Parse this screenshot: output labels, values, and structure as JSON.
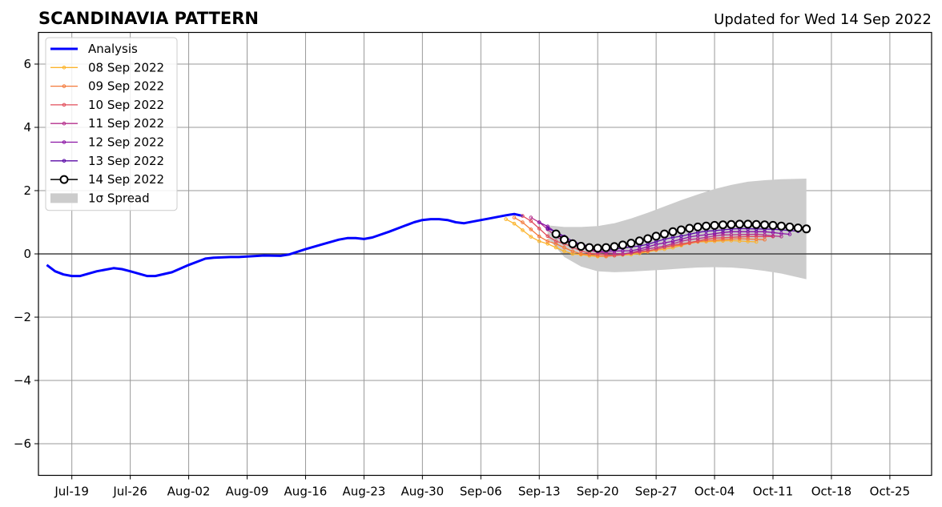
{
  "chart_data": {
    "type": "line",
    "title": "SCANDINAVIA PATTERN",
    "subtitle": "Updated for Wed 14 Sep 2022",
    "xlabel": "",
    "ylabel": "",
    "xlim": [
      "2022-07-15",
      "2022-10-30"
    ],
    "ylim": [
      -7,
      7
    ],
    "x_ticks": [
      {
        "date": "2022-07-19",
        "label": "Jul-19"
      },
      {
        "date": "2022-07-26",
        "label": "Jul-26"
      },
      {
        "date": "2022-08-02",
        "label": "Aug-02"
      },
      {
        "date": "2022-08-09",
        "label": "Aug-09"
      },
      {
        "date": "2022-08-16",
        "label": "Aug-16"
      },
      {
        "date": "2022-08-23",
        "label": "Aug-23"
      },
      {
        "date": "2022-08-30",
        "label": "Aug-30"
      },
      {
        "date": "2022-09-06",
        "label": "Sep-06"
      },
      {
        "date": "2022-09-13",
        "label": "Sep-13"
      },
      {
        "date": "2022-09-20",
        "label": "Sep-20"
      },
      {
        "date": "2022-09-27",
        "label": "Sep-27"
      },
      {
        "date": "2022-10-04",
        "label": "Oct-04"
      },
      {
        "date": "2022-10-11",
        "label": "Oct-11"
      },
      {
        "date": "2022-10-18",
        "label": "Oct-18"
      },
      {
        "date": "2022-10-25",
        "label": "Oct-25"
      }
    ],
    "y_ticks": [
      {
        "value": -6,
        "label": "−6"
      },
      {
        "value": -4,
        "label": "−4"
      },
      {
        "value": -2,
        "label": "−2"
      },
      {
        "value": 0,
        "label": "0"
      },
      {
        "value": 2,
        "label": "2"
      },
      {
        "value": 4,
        "label": "4"
      },
      {
        "value": 6,
        "label": "6"
      }
    ],
    "grid": true,
    "legend_position": "top-left",
    "zero_line": 0,
    "analysis": {
      "name": "Analysis",
      "color": "#0000ff",
      "dates": [
        "2022-07-16",
        "2022-07-17",
        "2022-07-18",
        "2022-07-19",
        "2022-07-20",
        "2022-07-22",
        "2022-07-24",
        "2022-07-25",
        "2022-07-26",
        "2022-07-28",
        "2022-07-29",
        "2022-07-31",
        "2022-08-02",
        "2022-08-04",
        "2022-08-05",
        "2022-08-07",
        "2022-08-08",
        "2022-08-09",
        "2022-08-11",
        "2022-08-13",
        "2022-08-14",
        "2022-08-16",
        "2022-08-18",
        "2022-08-20",
        "2022-08-21",
        "2022-08-22",
        "2022-08-23",
        "2022-08-24",
        "2022-08-26",
        "2022-08-28",
        "2022-08-29",
        "2022-08-30",
        "2022-08-31",
        "2022-09-01",
        "2022-09-02",
        "2022-09-03",
        "2022-09-04",
        "2022-09-05",
        "2022-09-07",
        "2022-09-09",
        "2022-09-10",
        "2022-09-11"
      ],
      "values": [
        -0.35,
        -0.55,
        -0.65,
        -0.7,
        -0.7,
        -0.55,
        -0.45,
        -0.48,
        -0.55,
        -0.7,
        -0.7,
        -0.58,
        -0.35,
        -0.15,
        -0.12,
        -0.1,
        -0.1,
        -0.08,
        -0.05,
        -0.06,
        -0.02,
        0.15,
        0.3,
        0.45,
        0.5,
        0.5,
        0.47,
        0.52,
        0.7,
        0.9,
        1.0,
        1.07,
        1.1,
        1.1,
        1.07,
        1.0,
        0.97,
        1.02,
        1.12,
        1.22,
        1.26,
        1.2
      ]
    },
    "forecasts": [
      {
        "name": "08 Sep 2022",
        "color": "#fbb42c",
        "start": "2022-09-09",
        "end": "2022-10-09",
        "anchors": [
          [
            "2022-09-09",
            1.1
          ],
          [
            "2022-09-13",
            0.4
          ],
          [
            "2022-09-17",
            0.0
          ],
          [
            "2022-09-20",
            -0.08
          ],
          [
            "2022-09-24",
            -0.02
          ],
          [
            "2022-09-28",
            0.15
          ],
          [
            "2022-10-02",
            0.38
          ],
          [
            "2022-10-06",
            0.42
          ],
          [
            "2022-10-09",
            0.38
          ]
        ]
      },
      {
        "name": "09 Sep 2022",
        "color": "#f4793a",
        "start": "2022-09-10",
        "end": "2022-10-10",
        "anchors": [
          [
            "2022-09-10",
            1.15
          ],
          [
            "2022-09-14",
            0.4
          ],
          [
            "2022-09-18",
            0.0
          ],
          [
            "2022-09-21",
            -0.08
          ],
          [
            "2022-09-25",
            0.05
          ],
          [
            "2022-09-29",
            0.25
          ],
          [
            "2022-10-03",
            0.42
          ],
          [
            "2022-10-07",
            0.48
          ],
          [
            "2022-10-10",
            0.45
          ]
        ]
      },
      {
        "name": "10 Sep 2022",
        "color": "#e24d5a",
        "start": "2022-09-11",
        "end": "2022-10-11",
        "anchors": [
          [
            "2022-09-11",
            1.2
          ],
          [
            "2022-09-15",
            0.4
          ],
          [
            "2022-09-19",
            0.02
          ],
          [
            "2022-09-22",
            -0.05
          ],
          [
            "2022-09-26",
            0.1
          ],
          [
            "2022-09-30",
            0.32
          ],
          [
            "2022-10-04",
            0.5
          ],
          [
            "2022-10-08",
            0.55
          ],
          [
            "2022-10-11",
            0.55
          ]
        ]
      },
      {
        "name": "11 Sep 2022",
        "color": "#b52f8c",
        "start": "2022-09-12",
        "end": "2022-10-12",
        "anchors": [
          [
            "2022-09-12",
            1.15
          ],
          [
            "2022-09-16",
            0.4
          ],
          [
            "2022-09-20",
            0.05
          ],
          [
            "2022-09-23",
            0.0
          ],
          [
            "2022-09-27",
            0.2
          ],
          [
            "2022-10-01",
            0.45
          ],
          [
            "2022-10-05",
            0.6
          ],
          [
            "2022-10-09",
            0.62
          ],
          [
            "2022-10-12",
            0.55
          ]
        ]
      },
      {
        "name": "12 Sep 2022",
        "color": "#8b14a5",
        "start": "2022-09-13",
        "end": "2022-10-13",
        "anchors": [
          [
            "2022-09-13",
            1.0
          ],
          [
            "2022-09-17",
            0.35
          ],
          [
            "2022-09-20",
            0.08
          ],
          [
            "2022-09-24",
            0.1
          ],
          [
            "2022-09-28",
            0.35
          ],
          [
            "2022-10-02",
            0.58
          ],
          [
            "2022-10-06",
            0.7
          ],
          [
            "2022-10-10",
            0.7
          ],
          [
            "2022-10-13",
            0.62
          ]
        ]
      },
      {
        "name": "13 Sep 2022",
        "color": "#5a0aa6",
        "start": "2022-09-14",
        "end": "2022-10-14",
        "anchors": [
          [
            "2022-09-14",
            0.8
          ],
          [
            "2022-09-18",
            0.3
          ],
          [
            "2022-09-21",
            0.12
          ],
          [
            "2022-09-25",
            0.25
          ],
          [
            "2022-09-29",
            0.52
          ],
          [
            "2022-10-03",
            0.72
          ],
          [
            "2022-10-07",
            0.8
          ],
          [
            "2022-10-11",
            0.78
          ],
          [
            "2022-10-14",
            0.72
          ]
        ]
      }
    ],
    "latest": {
      "name": "14 Sep 2022",
      "color": "#000000",
      "dates": [
        "2022-09-15",
        "2022-09-16",
        "2022-09-17",
        "2022-09-18",
        "2022-09-19",
        "2022-09-20",
        "2022-09-21",
        "2022-09-22",
        "2022-09-23",
        "2022-09-24",
        "2022-09-25",
        "2022-09-26",
        "2022-09-27",
        "2022-09-28",
        "2022-09-29",
        "2022-09-30",
        "2022-10-01",
        "2022-10-02",
        "2022-10-03",
        "2022-10-04",
        "2022-10-05",
        "2022-10-06",
        "2022-10-07",
        "2022-10-08",
        "2022-10-09",
        "2022-10-10",
        "2022-10-11",
        "2022-10-12",
        "2022-10-13",
        "2022-10-14",
        "2022-10-15"
      ],
      "values": [
        0.63,
        0.45,
        0.32,
        0.24,
        0.2,
        0.18,
        0.2,
        0.23,
        0.28,
        0.34,
        0.41,
        0.48,
        0.56,
        0.63,
        0.7,
        0.76,
        0.81,
        0.85,
        0.88,
        0.9,
        0.92,
        0.93,
        0.94,
        0.94,
        0.93,
        0.92,
        0.9,
        0.88,
        0.85,
        0.82,
        0.79
      ]
    },
    "spread": {
      "name": "1σ Spread",
      "color": "#cccccc",
      "dates": [
        "2022-09-14",
        "2022-09-16",
        "2022-09-18",
        "2022-09-20",
        "2022-09-22",
        "2022-09-24",
        "2022-09-26",
        "2022-09-28",
        "2022-09-30",
        "2022-10-02",
        "2022-10-04",
        "2022-10-06",
        "2022-10-08",
        "2022-10-10",
        "2022-10-12",
        "2022-10-15"
      ],
      "upper": [
        0.9,
        0.85,
        0.85,
        0.88,
        0.97,
        1.12,
        1.3,
        1.5,
        1.7,
        1.88,
        2.05,
        2.18,
        2.28,
        2.33,
        2.36,
        2.38
      ],
      "lower": [
        0.5,
        -0.1,
        -0.4,
        -0.55,
        -0.58,
        -0.56,
        -0.53,
        -0.5,
        -0.46,
        -0.43,
        -0.42,
        -0.43,
        -0.47,
        -0.54,
        -0.62,
        -0.8
      ]
    }
  }
}
